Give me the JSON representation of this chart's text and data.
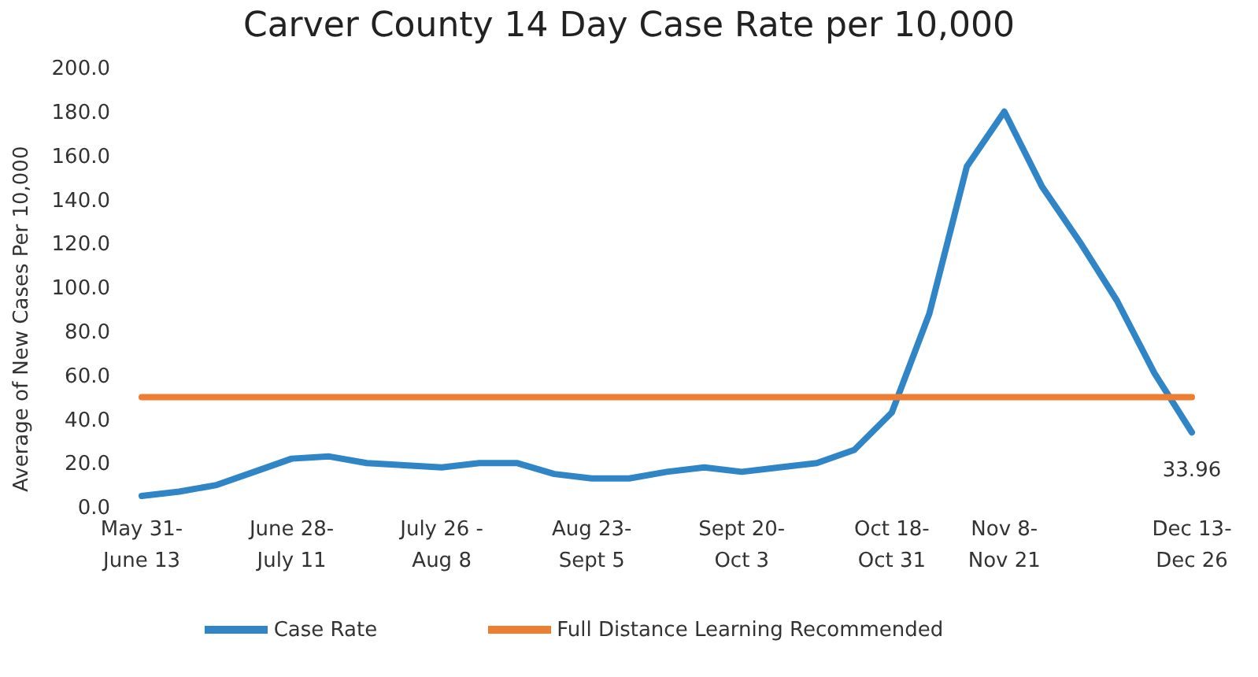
{
  "chart_data": {
    "type": "line",
    "title": "Carver County 14 Day Case Rate per 10,000",
    "ylabel": "Average of New Cases Per 10,000",
    "categories": [
      "May 31-\nJune 13",
      null,
      null,
      null,
      "June 28-\nJuly 11",
      null,
      null,
      null,
      "July 26 -\nAug 8",
      null,
      null,
      null,
      "Aug 23-\nSept 5",
      null,
      null,
      null,
      "Sept 20-\nOct 3",
      null,
      null,
      null,
      "Oct 18-\nOct 31",
      null,
      null,
      "Nov 8-\nNov 21",
      null,
      null,
      null,
      null,
      "Dec 13-\nDec 26"
    ],
    "series": [
      {
        "name": "Case Rate",
        "color": "#2f85c6",
        "values": [
          5,
          7,
          10,
          16,
          22,
          23,
          20,
          19,
          18,
          20,
          20,
          15,
          13,
          13,
          16,
          18,
          16,
          18,
          20,
          26,
          43,
          88,
          155,
          180,
          146,
          121,
          94,
          61,
          33.96
        ],
        "value_labels": [
          null,
          null,
          null,
          null,
          null,
          null,
          null,
          null,
          null,
          null,
          null,
          null,
          null,
          null,
          null,
          null,
          null,
          null,
          null,
          null,
          null,
          null,
          null,
          null,
          null,
          null,
          null,
          null,
          "33.96"
        ]
      },
      {
        "name": "Full Distance Learning Recommended",
        "color": "#ed7d31",
        "values": [
          50,
          50,
          50,
          50,
          50,
          50,
          50,
          50,
          50,
          50,
          50,
          50,
          50,
          50,
          50,
          50,
          50,
          50,
          50,
          50,
          50,
          50,
          50,
          50,
          50,
          50,
          50,
          50,
          50
        ]
      }
    ],
    "ylim": [
      0,
      200
    ],
    "yticks": [
      {
        "value": 0,
        "label": "0.0"
      },
      {
        "value": 20,
        "label": "20.0"
      },
      {
        "value": 40,
        "label": "40.0"
      },
      {
        "value": 60,
        "label": "60.0"
      },
      {
        "value": 80,
        "label": "80.0"
      },
      {
        "value": 100,
        "label": "100.0"
      },
      {
        "value": 120,
        "label": "120.0"
      },
      {
        "value": 140,
        "label": "140.0"
      },
      {
        "value": 160,
        "label": "160.0"
      },
      {
        "value": 180,
        "label": "180.0"
      },
      {
        "value": 200,
        "label": "200.0"
      }
    ],
    "grid": false,
    "legend": "bottom",
    "marker": "none",
    "line_style": "solid"
  }
}
